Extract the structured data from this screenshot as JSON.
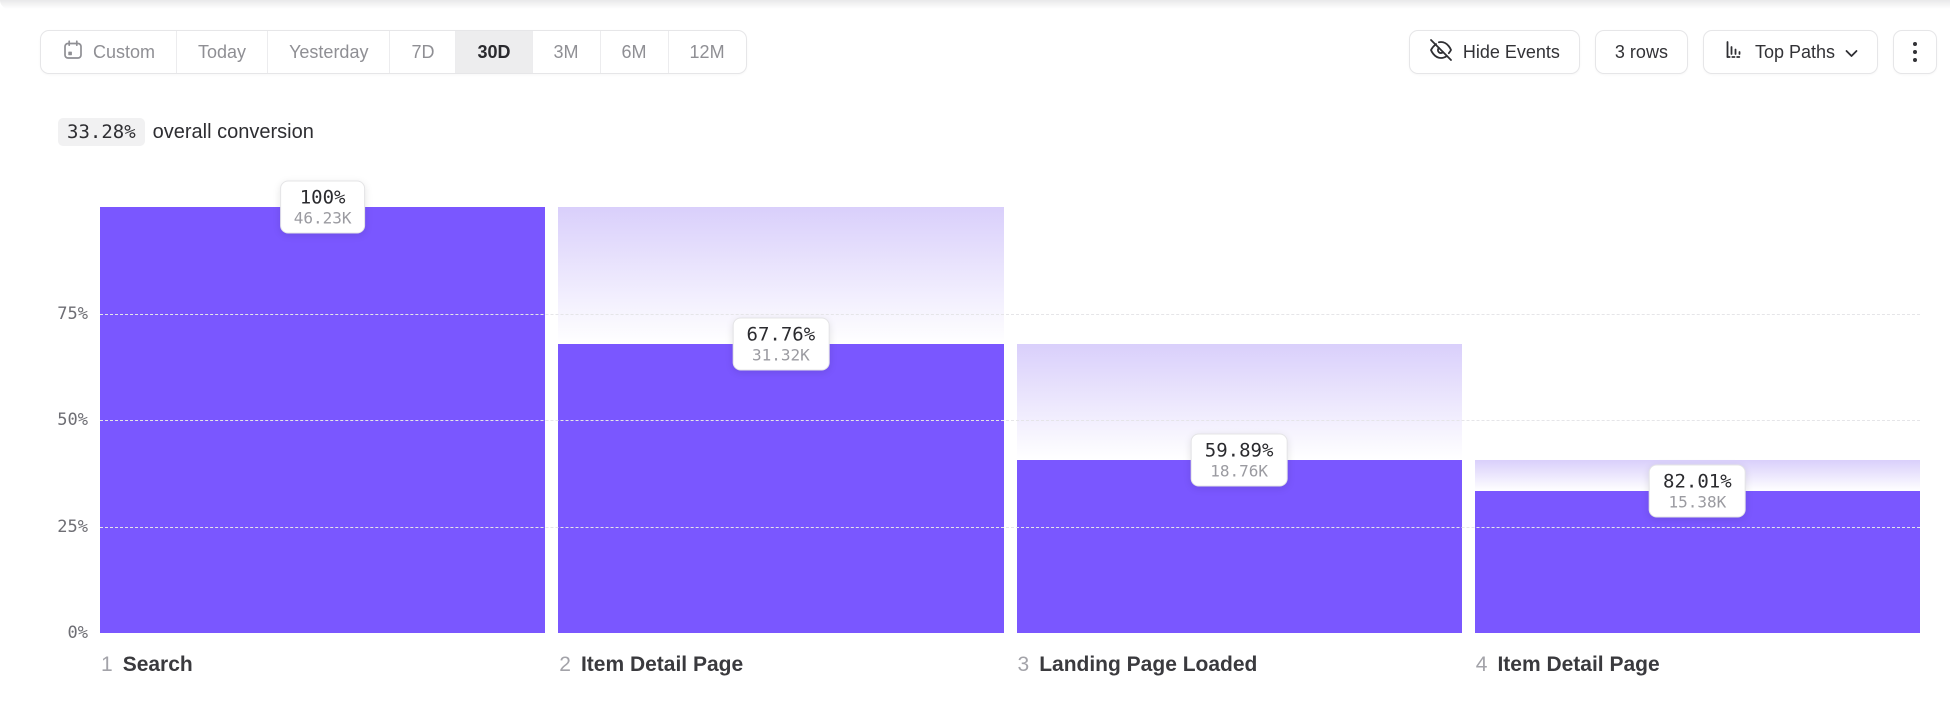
{
  "toolbar": {
    "date_ranges": [
      {
        "label": "Custom",
        "icon": "calendar-icon",
        "selected": false
      },
      {
        "label": "Today",
        "selected": false
      },
      {
        "label": "Yesterday",
        "selected": false
      },
      {
        "label": "7D",
        "selected": false
      },
      {
        "label": "30D",
        "selected": true
      },
      {
        "label": "3M",
        "selected": false
      },
      {
        "label": "6M",
        "selected": false
      },
      {
        "label": "12M",
        "selected": false
      }
    ],
    "hide_events_label": "Hide Events",
    "rows_label": "3 rows",
    "top_paths_label": "Top Paths"
  },
  "summary": {
    "conversion_value": "33.28%",
    "conversion_text": "overall conversion"
  },
  "chart_data": {
    "type": "bar",
    "subtype": "funnel",
    "title": "33.28% overall conversion",
    "categories": [
      "Search",
      "Item Detail Page",
      "Landing Page Loaded",
      "Item Detail Page"
    ],
    "steps": [
      {
        "index": "1",
        "label": "Search",
        "conversion_pct": "100%",
        "count": "46.23K",
        "overall_pct": 100,
        "prev_overall_pct": 100
      },
      {
        "index": "2",
        "label": "Item Detail Page",
        "conversion_pct": "67.76%",
        "count": "31.32K",
        "overall_pct": 67.75,
        "prev_overall_pct": 100
      },
      {
        "index": "3",
        "label": "Landing Page Loaded",
        "conversion_pct": "59.89%",
        "count": "18.76K",
        "overall_pct": 40.58,
        "prev_overall_pct": 67.75
      },
      {
        "index": "4",
        "label": "Item Detail Page",
        "conversion_pct": "82.01%",
        "count": "15.38K",
        "overall_pct": 33.27,
        "prev_overall_pct": 40.58
      }
    ],
    "y_ticks": [
      {
        "label": "75%",
        "value": 75
      },
      {
        "label": "50%",
        "value": 50
      },
      {
        "label": "25%",
        "value": 25
      },
      {
        "label": "0%",
        "value": 0
      }
    ],
    "ylim": [
      0,
      100
    ],
    "grid": "dashed",
    "colors": {
      "bar": "#7a57ff",
      "gradient_top": "#d9cffb"
    }
  }
}
